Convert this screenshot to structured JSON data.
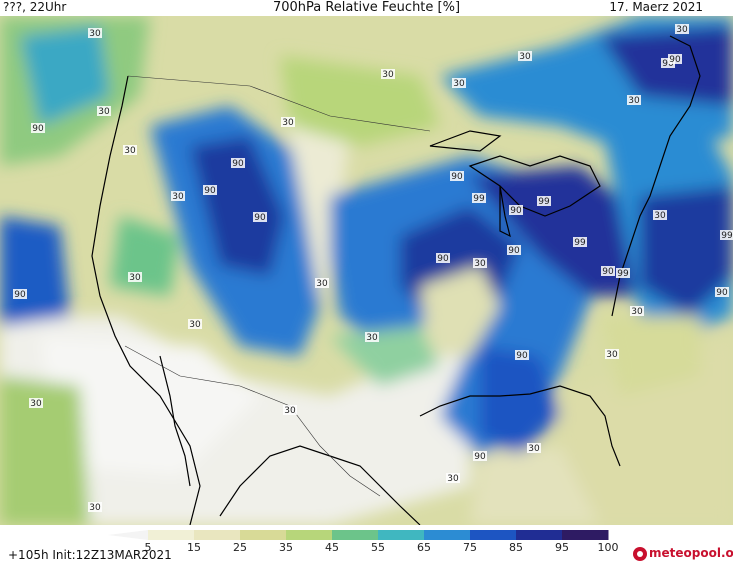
{
  "header": {
    "left": "???, 22Uhr",
    "title": "700hPa Relative Feuchte [%]",
    "right": "17. Maerz 2021"
  },
  "footer": {
    "init": "+105h Init:12Z13MAR2021",
    "brand": "meteopool.org"
  },
  "colorbar": {
    "ticks": [
      "5",
      "15",
      "25",
      "35",
      "45",
      "55",
      "65",
      "75",
      "85",
      "95",
      "100"
    ],
    "colors": [
      "#f1f1f1",
      "#f1f0d6",
      "#e9e6bf",
      "#d8da97",
      "#b7d67a",
      "#6cc48a",
      "#40b7c0",
      "#2c8cd3",
      "#1d55c2",
      "#202d94",
      "#2e1b63"
    ]
  },
  "map": {
    "contour_values": {
      "low": "30",
      "high": "90",
      "max": "99"
    }
  }
}
